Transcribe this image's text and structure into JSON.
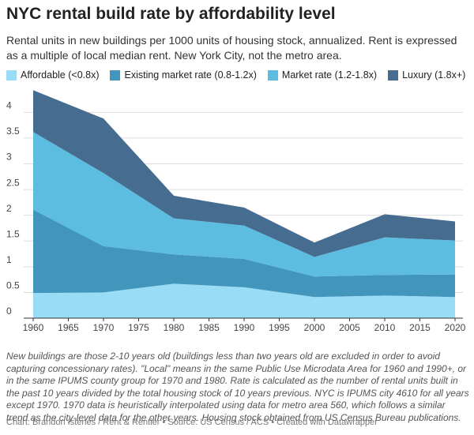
{
  "chart_data": {
    "type": "stacked-area",
    "title": "NYC rental build rate by affordability level",
    "subtitle": "Rental units in new buildings per 1000 units of housing stock, annualized. Rent is expressed as a multiple of local median rent. New York City, not the metro area.",
    "x": [
      1960,
      1970,
      1980,
      1990,
      2000,
      2010,
      2020
    ],
    "series": [
      {
        "name": "Affordable (<0.8x)",
        "color": "#98dcf6",
        "values": [
          0.49,
          0.5,
          0.67,
          0.6,
          0.41,
          0.44,
          0.41
        ]
      },
      {
        "name": "Existing market rate (0.8-1.2x)",
        "color": "#4296bb",
        "values": [
          1.62,
          0.9,
          0.57,
          0.55,
          0.4,
          0.4,
          0.44
        ]
      },
      {
        "name": "Market rate (1.2-1.8x)",
        "color": "#5cbde0",
        "values": [
          1.51,
          1.42,
          0.7,
          0.65,
          0.38,
          0.73,
          0.66
        ]
      },
      {
        "name": "Luxury (1.8x+)",
        "color": "#466d8f",
        "values": [
          0.81,
          1.06,
          0.44,
          0.35,
          0.28,
          0.45,
          0.37
        ]
      }
    ],
    "xlim": [
      1960,
      2020
    ],
    "xticks": [
      1960,
      1965,
      1970,
      1975,
      1980,
      1985,
      1990,
      1995,
      2000,
      2005,
      2010,
      2015,
      2020
    ],
    "ylim": [
      0,
      4.45
    ],
    "yticks": [
      0,
      0.5,
      1,
      1.5,
      2,
      2.5,
      3,
      3.5,
      4
    ],
    "grid": true,
    "note": "New buildings are those 2-10 years old (buildings less than two years old are excluded in order to avoid capturing concessionary rates). \"Local\" means in the same Public Use Microdata Area for 1960 and 1990+, or in the same IPUMS county group for 1970 and 1980. Rate is calculated as the number of rental units built in the past 10 years divided by the total housing stock of 10 years previous. NYC is IPUMS city 4610 for all years except 1970. 1970 data is heuristically interpolated using data for metro area 560, which follows a similar trend as the city-level data for the other years. Housing stock obtained from US Census Bureau publications.",
    "source": "Chart: Brandon Istenes / Rent & Rentier • Source: US Census / ACS • Created with Datawrapper"
  }
}
